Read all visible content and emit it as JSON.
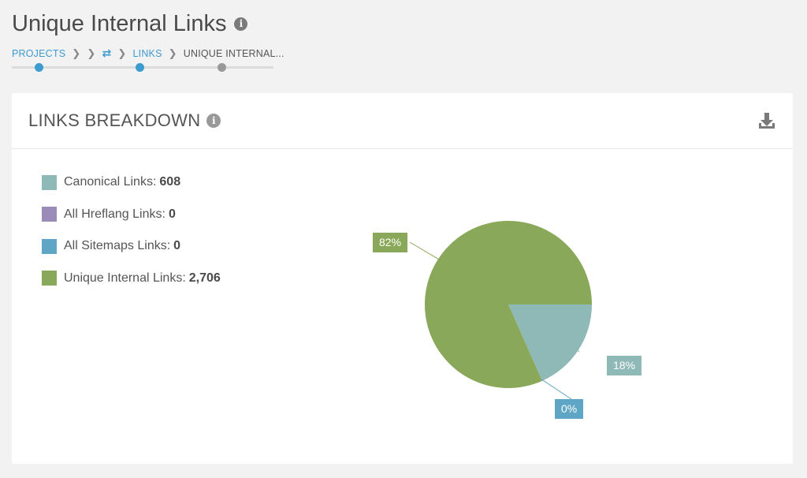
{
  "header": {
    "title": "Unique Internal Links",
    "info_icon": "info-icon",
    "breadcrumb": {
      "projects": "PROJECTS",
      "sep": ">",
      "swap_icon": "⇄",
      "links": "LINKS",
      "current": "UNIQUE INTERNAL..."
    }
  },
  "card": {
    "title": "LINKS BREAKDOWN",
    "download_icon": "download-icon"
  },
  "colors": {
    "canonical": "#8fb9b7",
    "hreflang": "#9b8bb8",
    "sitemaps": "#5fa6c6",
    "unique": "#8aa85a",
    "accent": "#3d9bd0"
  },
  "chart_data": {
    "type": "pie",
    "series": [
      {
        "name": "Canonical Links",
        "value": 608,
        "label": "18%"
      },
      {
        "name": "All Hreflang Links",
        "value": 0,
        "label": ""
      },
      {
        "name": "All Sitemaps Links",
        "value": 0,
        "label": "0%"
      },
      {
        "name": "Unique Internal Links",
        "value": 2706,
        "label": "82%"
      }
    ],
    "legend_position": "left"
  },
  "legend": [
    {
      "label": "Canonical Links:",
      "value": "608"
    },
    {
      "label": "All Hreflang Links:",
      "value": "0"
    },
    {
      "label": "All Sitemaps Links:",
      "value": "0"
    },
    {
      "label": "Unique Internal Links:",
      "value": "2,706"
    }
  ]
}
